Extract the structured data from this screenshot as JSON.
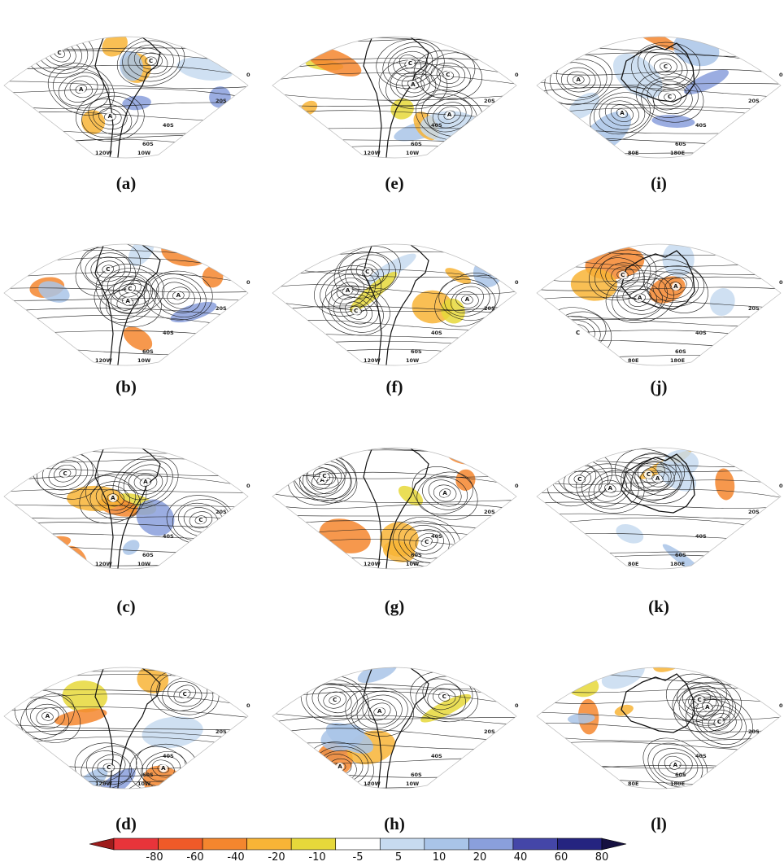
{
  "panel_captions": [
    "(a)",
    "(b)",
    "(c)",
    "(d)",
    "(e)",
    "(f)",
    "(g)",
    "(h)",
    "(i)",
    "(j)",
    "(k)",
    "(l)"
  ],
  "map_labels": {
    "south_america": {
      "lon": [
        "120W",
        "10W"
      ],
      "lat": [
        "0",
        "20S",
        "40S",
        "60S"
      ]
    },
    "australia": {
      "lon": [
        "80E",
        "180E"
      ],
      "lat": [
        "0",
        "20S",
        "40S",
        "60S"
      ]
    }
  },
  "centers": {
    "a": {
      "A": "A",
      "C": "C"
    }
  },
  "colorbar": {
    "ticks": [
      "-80",
      "-60",
      "-40",
      "-20",
      "-10",
      "-5",
      "5",
      "10",
      "20",
      "40",
      "60",
      "80"
    ],
    "colors": [
      "#9e1c1c",
      "#e8343a",
      "#f05a28",
      "#f4862e",
      "#f8b436",
      "#e6d83a",
      "#ffffff",
      "#c7dbf0",
      "#a9c4e8",
      "#8a9fdc",
      "#4446a8",
      "#252480",
      "#151040"
    ]
  },
  "palette": {
    "contour": "#1a1a1a",
    "coast": "#111111",
    "grid": "#bbbbbb"
  }
}
